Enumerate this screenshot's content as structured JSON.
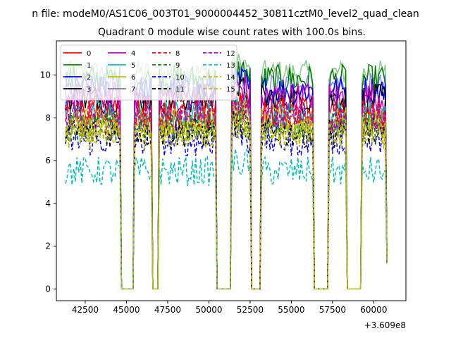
{
  "suptitle": "n file: modeM0/AS1C06_003T01_9000004452_30811cztM0_level2_quad_clean",
  "chart_data": {
    "type": "line",
    "title": "Quadrant 0 module wise count rates with 100.0s bins.",
    "xlabel": "",
    "ylabel": "",
    "offset_text": "+3.609e8",
    "xlim": [
      40750,
      61950
    ],
    "ylim": [
      -0.55,
      11.6
    ],
    "xticks": [
      42500,
      45000,
      47500,
      50000,
      52500,
      55000,
      57500,
      60000
    ],
    "xtick_labels": [
      "42500",
      "45000",
      "47500",
      "50000",
      "52500",
      "55000",
      "57500",
      "60000"
    ],
    "yticks": [
      0,
      2,
      4,
      6,
      8,
      10
    ],
    "ytick_labels": [
      "0",
      "2",
      "4",
      "6",
      "8",
      "10"
    ],
    "grid": false,
    "legend_position": "upper-left",
    "x_range": [
      41300,
      60800
    ],
    "gaps": [
      [
        44650,
        45400
      ],
      [
        46600,
        46900
      ],
      [
        50500,
        51300
      ],
      [
        52600,
        53100
      ],
      [
        56400,
        57250
      ],
      [
        58350,
        59200
      ]
    ],
    "series": [
      {
        "name": "0",
        "color": "#ff0000",
        "style": "solid",
        "mean": 8.4
      },
      {
        "name": "1",
        "color": "#008000",
        "style": "solid",
        "mean": 9.8
      },
      {
        "name": "2",
        "color": "#0000ff",
        "style": "solid",
        "mean": 9.3
      },
      {
        "name": "3",
        "color": "#000000",
        "style": "solid",
        "mean": 8.9
      },
      {
        "name": "4",
        "color": "#bf00bf",
        "style": "solid",
        "mean": 9.0
      },
      {
        "name": "5",
        "color": "#00bfbf",
        "style": "solid",
        "mean": 8.1
      },
      {
        "name": "6",
        "color": "#bfbf00",
        "style": "solid",
        "mean": 7.8
      },
      {
        "name": "7",
        "color": "#808080",
        "style": "solid",
        "mean": 7.7
      },
      {
        "name": "8",
        "color": "#ff0000",
        "style": "dashed",
        "mean": 8.2
      },
      {
        "name": "9",
        "color": "#008000",
        "style": "dashed",
        "mean": 7.6
      },
      {
        "name": "10",
        "color": "#0000ff",
        "style": "dashed",
        "mean": 6.9
      },
      {
        "name": "11",
        "color": "#000000",
        "style": "dashed",
        "mean": 7.3
      },
      {
        "name": "12",
        "color": "#bf00bf",
        "style": "dashed",
        "mean": 8.0
      },
      {
        "name": "13",
        "color": "#00bfbf",
        "style": "dashed",
        "mean": 5.5
      },
      {
        "name": "14",
        "color": "#bfbf00",
        "style": "dashed",
        "mean": 7.2
      },
      {
        "name": "15",
        "color": "#bfbf00",
        "style": "dashed",
        "mean": 7.4
      }
    ],
    "overlays": [
      {
        "color": "#80c080",
        "mean": 10.1
      },
      {
        "color": "#8080ff",
        "mean": 9.5
      }
    ]
  }
}
